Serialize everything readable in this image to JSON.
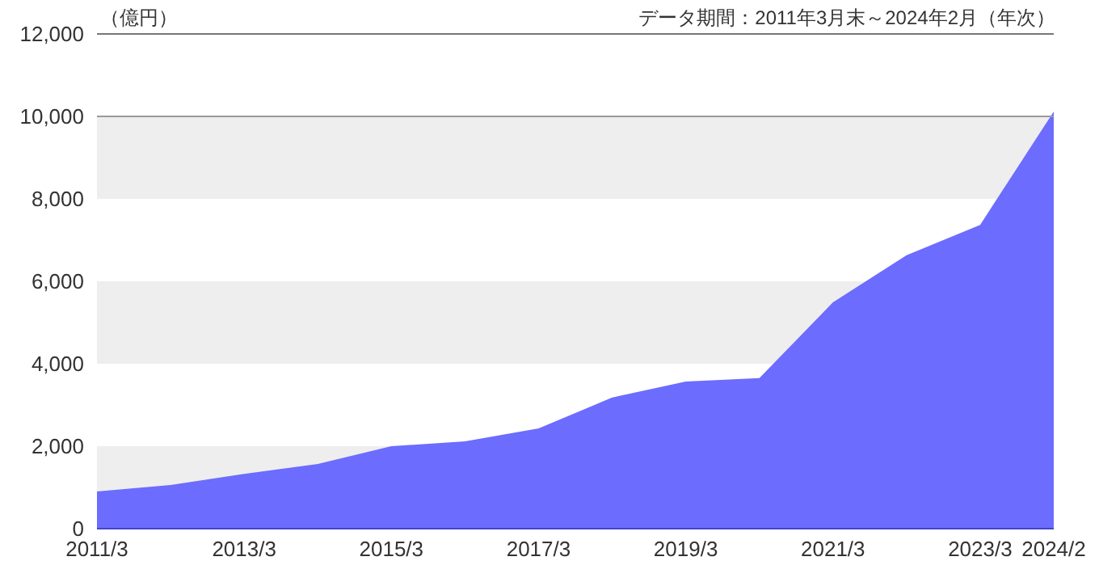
{
  "chart_data": {
    "type": "area",
    "ylabel": "（億円）",
    "annotations": [
      "データ期間：2011年3月末～2024年2月（年次）"
    ],
    "categories": [
      "2011/3",
      null,
      "2013/3",
      null,
      "2015/3",
      null,
      "2017/3",
      null,
      "2019/3",
      null,
      "2021/3",
      null,
      "2023/3",
      "2024/2"
    ],
    "series": [
      {
        "color": "#6666ff",
        "values": [
          900,
          1060,
          1330,
          1570,
          2000,
          2120,
          2430,
          3180,
          3570,
          3650,
          5490,
          6630,
          7370,
          10120
        ]
      }
    ],
    "ylim": [
      0,
      12000
    ],
    "yticks": [
      0,
      {
        "value": 2000,
        "label": "2,000"
      },
      {
        "value": 4000,
        "label": "4,000"
      },
      {
        "value": 6000,
        "label": "6,000"
      },
      {
        "value": 8000,
        "label": "8,000"
      },
      {
        "value": 10000,
        "label": "10,000"
      },
      {
        "value": 12000,
        "label": "12,000"
      }
    ],
    "bands": [
      {
        "axis": "y",
        "from": 0,
        "to": 2000,
        "color": "#eeeeee"
      },
      {
        "axis": "y",
        "from": 4000,
        "to": 6000,
        "color": "#eeeeee"
      },
      {
        "axis": "y",
        "from": 8000,
        "to": 10000,
        "color": "#eeeeee"
      }
    ],
    "ref_lines": [
      {
        "axis": "y",
        "value": 10000,
        "color": "#999999"
      },
      {
        "axis": "y",
        "value": 12000,
        "color": "#777777"
      }
    ],
    "grid": false
  }
}
